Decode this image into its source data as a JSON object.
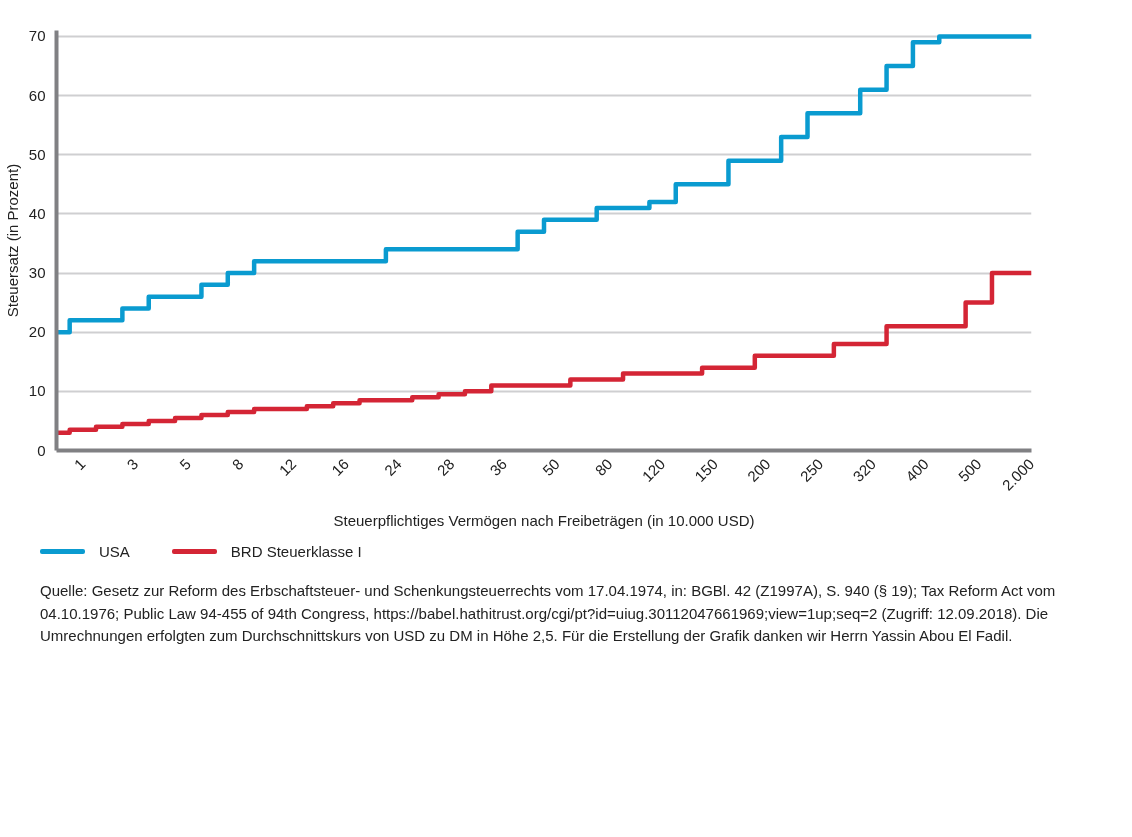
{
  "chart_data": {
    "type": "step",
    "xlabel": "Steuerpflichtiges Vermögen nach Freibeträgen (in 10.000 USD)",
    "ylabel": "Steuersatz (in Prozent)",
    "categories": [
      null,
      "1",
      null,
      "3",
      null,
      "5",
      null,
      "8",
      null,
      "12",
      null,
      "16",
      null,
      "24",
      null,
      "28",
      null,
      "36",
      null,
      "50",
      null,
      "80",
      null,
      "120",
      null,
      "150",
      null,
      "200",
      null,
      "250",
      null,
      "320",
      null,
      "400",
      null,
      "500",
      null,
      "2.000"
    ],
    "ylim": [
      0,
      71
    ],
    "yticks": [
      0,
      10,
      20,
      30,
      40,
      50,
      60,
      70
    ],
    "grid": "y",
    "legend": "bottom",
    "line_style": "solid",
    "series": [
      {
        "name": "USA",
        "color": "#0a9bd0",
        "values": [
          20,
          22,
          22,
          24,
          26,
          26,
          28,
          30,
          32,
          32,
          32,
          32,
          32,
          34,
          34,
          34,
          34,
          34,
          37,
          39,
          39,
          41,
          41,
          42,
          45,
          45,
          49,
          49,
          53,
          57,
          57,
          61,
          65,
          69,
          70,
          70,
          70,
          70
        ]
      },
      {
        "name": "BRD Steuerklasse I",
        "color": "#d42535",
        "values": [
          3,
          3.5,
          4,
          4.5,
          5,
          5.5,
          6,
          6.5,
          7,
          7,
          7.5,
          8,
          8.5,
          8.5,
          9,
          9.5,
          10,
          11,
          11,
          11,
          12,
          12,
          13,
          13,
          13,
          14,
          14,
          16,
          16,
          16,
          18,
          18,
          21,
          21,
          21,
          25,
          30,
          30
        ]
      }
    ],
    "annotations": [
      "Quelle: Gesetz zur Reform des Erbschaftsteuer- und Schenkungsteuerrechts vom 17.04.1974, in: BGBl. 42 (Z1997A), S. 940 (§ 19); Tax Reform Act vom 04.10.1976; Public Law 94-455 of 94th Congress, https://babel.hathitrust.org/cgi/pt?id=uiug.30112047661969;view=1up;seq=2 (Zugriff: 12.09.2018). Die Umrechnungen erfolgten zum Durchschnittskurs von USD zu DM in Höhe 2,5. Für die Erstellung der Grafik danken wir Herrn Yassin Abou El Fadil."
    ]
  }
}
